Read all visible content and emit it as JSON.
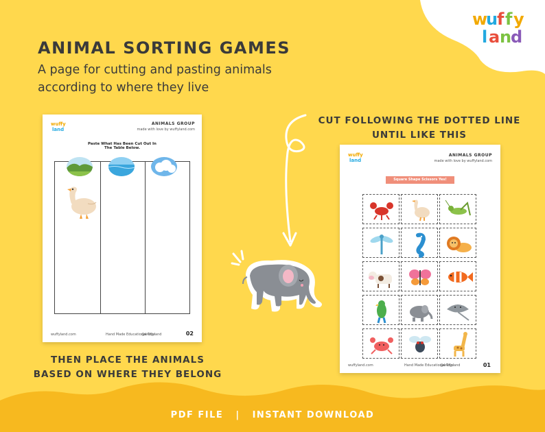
{
  "brand": {
    "logo_line1": "wuffy",
    "logo_line2": "land"
  },
  "header": {
    "title": "ANIMAL SORTING GAMES",
    "subtitle_line1": "A page for cutting and pasting animals",
    "subtitle_line2": "according to where they live"
  },
  "left_sheet": {
    "header": "ANIMALS GROUP",
    "tagline": "made with love by wuffyland.com",
    "instruction_line1": "Paste What Has Been Cut Out In",
    "instruction_line2": "The Table Below.",
    "footer_site": "wuffyland.com",
    "footer_mid": "Hand Made Educational Toys",
    "footer_social": "@wuffyland",
    "page_number": "02",
    "columns": [
      "land-scene",
      "water-scene",
      "sky-scene"
    ]
  },
  "right_sheet": {
    "header": "ANIMALS GROUP",
    "tagline": "made with love by wuffyland.com",
    "banner": "Square Shape Scissors Yes!",
    "footer_site": "wuffyland.com",
    "footer_mid": "Hand Made Educational Toys",
    "footer_social": "@wuffyland",
    "page_number": "01",
    "grid": [
      [
        "lobster-icon",
        "goose-icon",
        "grasshopper-icon"
      ],
      [
        "dragonfly-icon",
        "seahorse-icon",
        "lion-icon"
      ],
      [
        "cow-icon",
        "butterfly-icon",
        "clownfish-icon"
      ],
      [
        "parrot-icon",
        "elephant-icon",
        "stingray-icon"
      ],
      [
        "crab-icon",
        "fly-icon",
        "giraffe-icon"
      ]
    ]
  },
  "captions": {
    "cut_line1": "CUT FOLLOWING THE DOTTED LINE",
    "cut_line2": "UNTIL LIKE THIS",
    "place_line1": "THEN PLACE THE ANIMALS",
    "place_line2": "BASED ON WHERE THEY BELONG"
  },
  "footer": {
    "left": "PDF FILE",
    "divider": "|",
    "right": "INSTANT DOWNLOAD"
  },
  "colors": {
    "background": "#ffd84d",
    "footer_band": "#f7b91f",
    "text": "#3a3a3a"
  }
}
